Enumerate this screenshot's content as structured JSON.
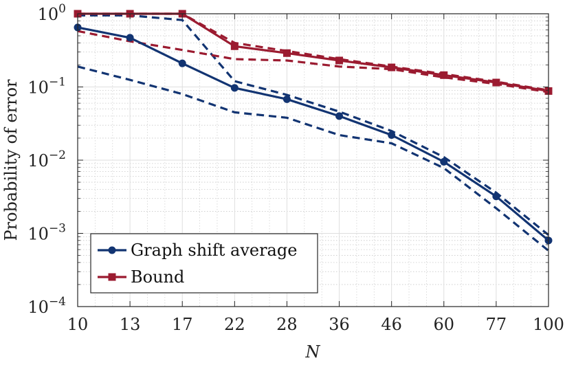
{
  "chart_data": {
    "type": "line",
    "xlabel": "N",
    "ylabel": "Probability of error",
    "yscale": "log",
    "ylim": [
      0.0001,
      1
    ],
    "x_ticks": [
      "10",
      "13",
      "17",
      "22",
      "28",
      "36",
      "46",
      "60",
      "77",
      "100"
    ],
    "y_ticks": [
      {
        "value": 1,
        "base": "10",
        "exp": "0"
      },
      {
        "value": 0.1,
        "base": "10",
        "exp": "−1"
      },
      {
        "value": 0.01,
        "base": "10",
        "exp": "−2"
      },
      {
        "value": 0.001,
        "base": "10",
        "exp": "−3"
      },
      {
        "value": 0.0001,
        "base": "10",
        "exp": "−4"
      }
    ],
    "grid": true,
    "legend_position": "bottom-left",
    "colors": {
      "graph_shift": "#123472",
      "bound": "#9b1b30"
    },
    "series": [
      {
        "name": "Graph shift average",
        "color": "#123472",
        "marker": "circle",
        "values": [
          0.65,
          0.47,
          0.21,
          0.097,
          0.068,
          0.04,
          0.022,
          0.0095,
          0.0032,
          0.0008
        ]
      },
      {
        "color": "#123472",
        "style": "dashed",
        "values": [
          0.95,
          0.95,
          0.82,
          0.12,
          0.078,
          0.046,
          0.025,
          0.011,
          0.0036,
          0.00095
        ]
      },
      {
        "color": "#123472",
        "style": "dashed",
        "values": [
          0.19,
          0.125,
          0.08,
          0.045,
          0.038,
          0.022,
          0.017,
          0.0078,
          0.0022,
          0.00058
        ]
      },
      {
        "name": "Bound",
        "color": "#9b1b30",
        "marker": "square",
        "values": [
          1.0,
          1.0,
          1.0,
          0.36,
          0.29,
          0.23,
          0.185,
          0.145,
          0.115,
          0.088
        ]
      },
      {
        "color": "#9b1b30",
        "style": "dashed",
        "values": [
          1.0,
          1.0,
          1.0,
          0.4,
          0.31,
          0.24,
          0.19,
          0.15,
          0.118,
          0.09
        ]
      },
      {
        "color": "#9b1b30",
        "style": "dashed",
        "values": [
          0.58,
          0.42,
          0.32,
          0.24,
          0.23,
          0.19,
          0.175,
          0.135,
          0.11,
          0.085
        ]
      }
    ]
  }
}
